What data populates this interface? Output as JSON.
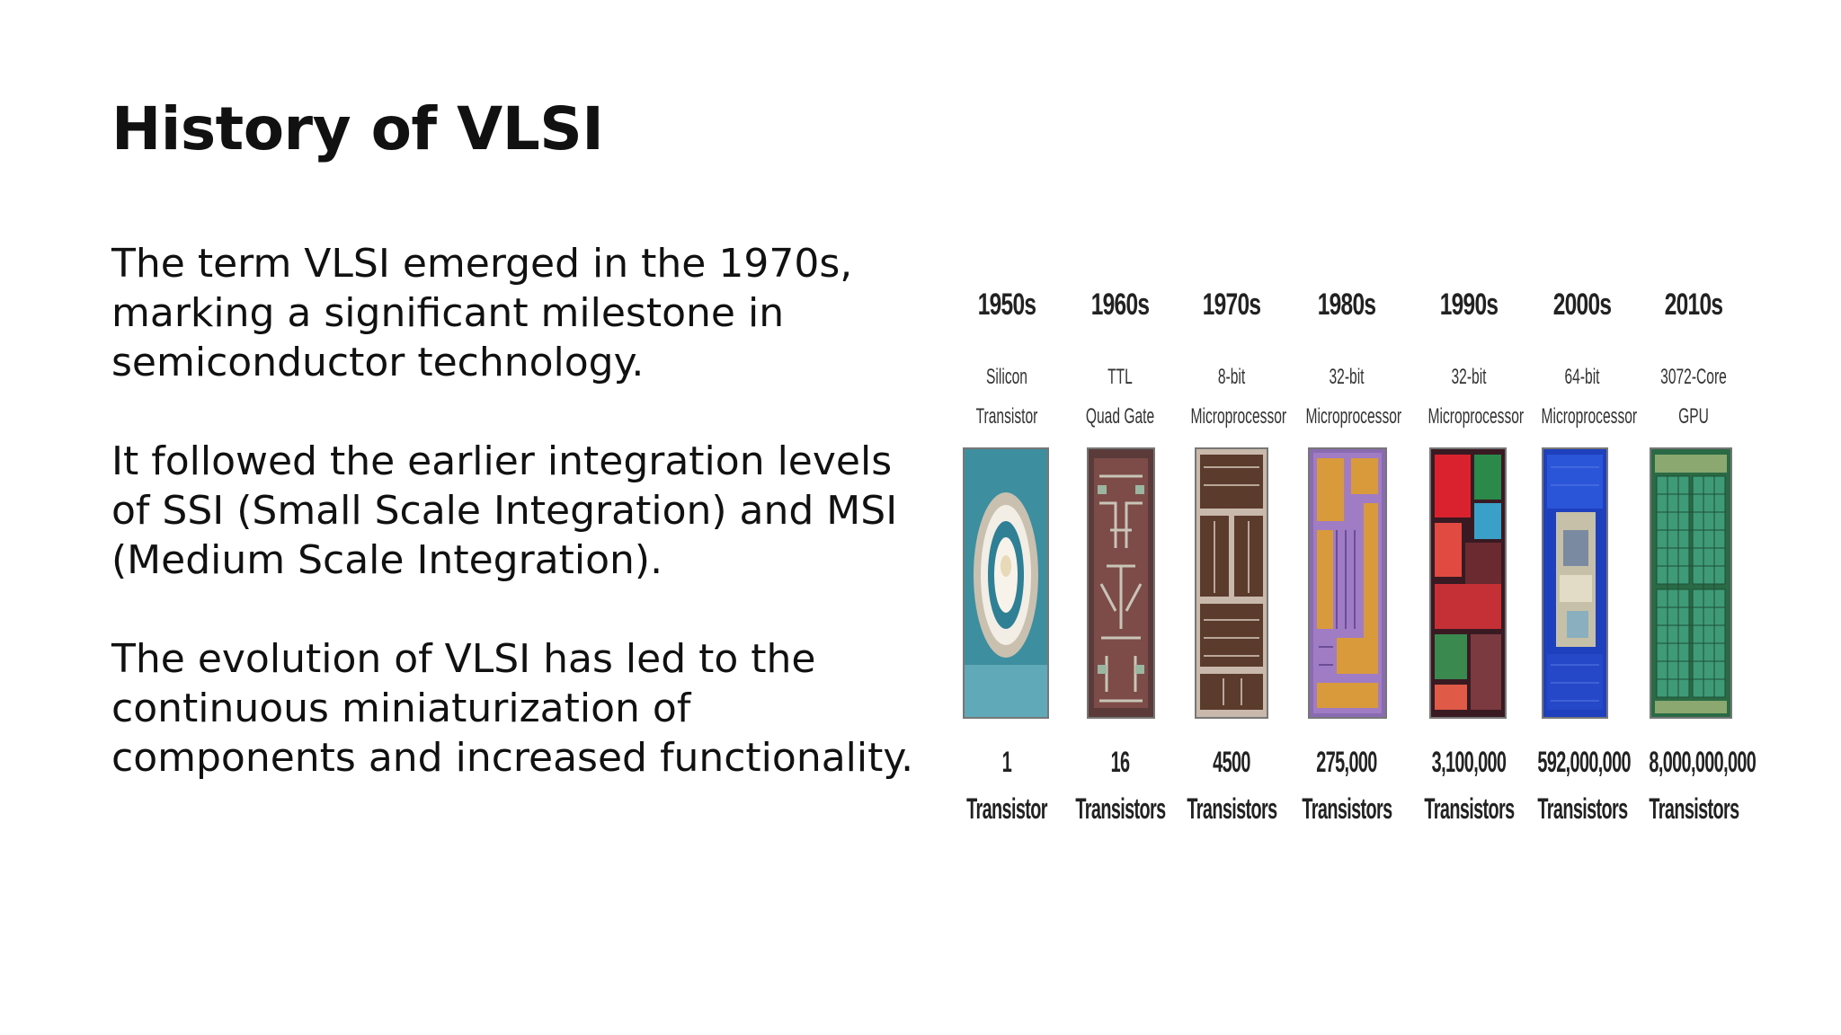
{
  "slide": {
    "title": "History of VLSI",
    "paragraphs": [
      "The term VLSI emerged in the 1970s, marking a significant milestone in semiconductor technology.",
      "It followed the earlier integration levels of SSI (Small Scale Integration) and MSI (Medium Scale Integration).",
      "The evolution of VLSI has led to the continuous miniaturization of components and increased functionality."
    ]
  },
  "timeline": {
    "eras": [
      {
        "year": "1950s",
        "desc1": "Silicon",
        "desc2": "Transistor",
        "count": "1",
        "unit": "Transistor",
        "chip_color": "#2e7f8f"
      },
      {
        "year": "1960s",
        "desc1": "TTL",
        "desc2": "Quad Gate",
        "count": "16",
        "unit": "Transistors",
        "chip_color": "#6b3b3b"
      },
      {
        "year": "1970s",
        "desc1": "8-bit",
        "desc2": "Microprocessor",
        "count": "4500",
        "unit": "Transistors",
        "chip_color": "#5a4035"
      },
      {
        "year": "1980s",
        "desc1": "32-bit",
        "desc2": "Microprocessor",
        "count": "275,000",
        "unit": "Transistors",
        "chip_color": "#7a5fa0"
      },
      {
        "year": "1990s",
        "desc1": "32-bit",
        "desc2": "Microprocessor",
        "count": "3,100,000",
        "unit": "Transistors",
        "chip_color": "#8a1f2a"
      },
      {
        "year": "2000s",
        "desc1": "64-bit",
        "desc2": "Microprocessor",
        "count": "592,000,000",
        "unit": "Transistors",
        "chip_color": "#1d3fb0"
      },
      {
        "year": "2010s",
        "desc1": "3072-Core",
        "desc2": "GPU",
        "count": "8,000,000,000",
        "unit": "Transistors",
        "chip_color": "#2f7a4e"
      }
    ]
  }
}
